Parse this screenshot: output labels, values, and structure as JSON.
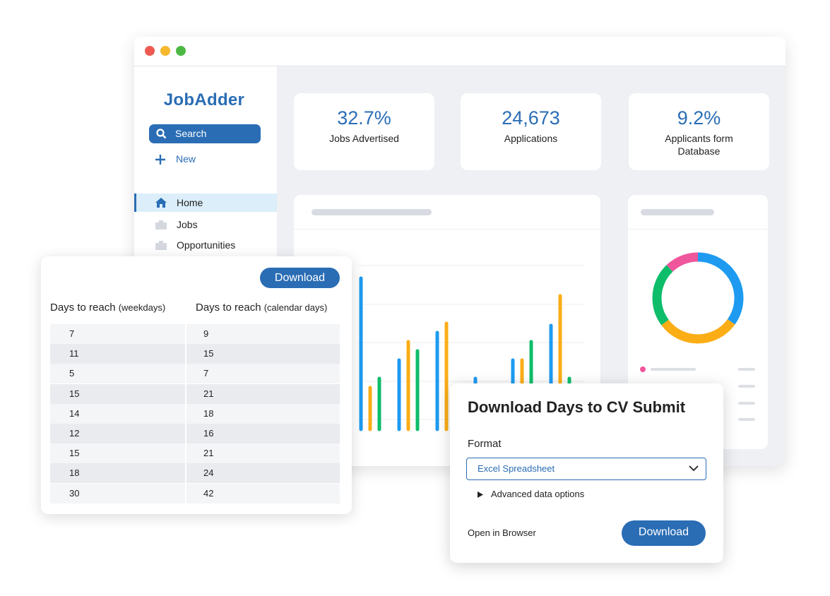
{
  "sidebar": {
    "brand": "JobAdder",
    "search": "Search",
    "new": "New",
    "nav": [
      "Home",
      "Jobs",
      "Opportunities"
    ]
  },
  "stats": [
    {
      "value": "32.7%",
      "label": "Jobs Advertised"
    },
    {
      "value": "24,673",
      "label": "Applications"
    },
    {
      "value": "9.2%",
      "label": "Applicants form Database"
    }
  ],
  "table": {
    "download": "Download",
    "headers": [
      {
        "title": "Days to reach",
        "unit": "(weekdays)"
      },
      {
        "title": "Days to reach",
        "unit": "(calendar days)"
      }
    ],
    "rows": [
      [
        7,
        9
      ],
      [
        11,
        15
      ],
      [
        5,
        7
      ],
      [
        15,
        21
      ],
      [
        14,
        18
      ],
      [
        12,
        16
      ],
      [
        15,
        21
      ],
      [
        18,
        24
      ],
      [
        30,
        42
      ]
    ]
  },
  "dialog": {
    "title": "Download Days to CV Submit",
    "format_label": "Format",
    "format": "Excel Spreadsheet",
    "advanced": "Advanced data options",
    "open_in_browser": "Open in Browser",
    "download": "Download"
  }
}
